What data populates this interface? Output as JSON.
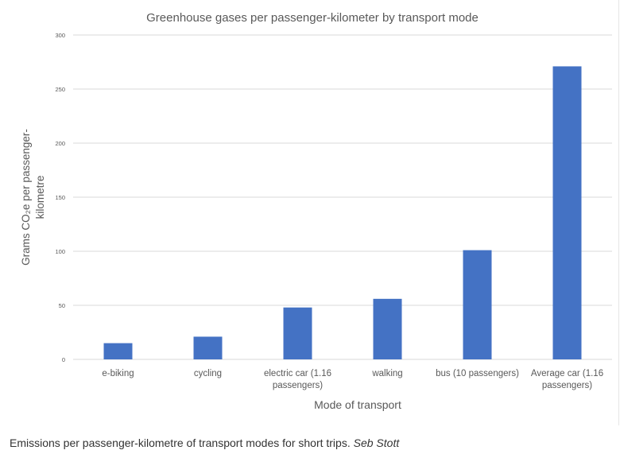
{
  "chart_data": {
    "type": "bar",
    "title": "Greenhouse gases per passenger-kilometer by transport mode",
    "xlabel": "Mode of transport",
    "ylabel": "Grams CO₂e per passenger-kilometre",
    "categories": [
      "e-biking",
      "cycling",
      "electric car (1.16 passengers)",
      "walking",
      "bus (10 passengers)",
      "Average car (1.16 passengers)"
    ],
    "values": [
      15,
      21,
      48,
      56,
      101,
      271
    ],
    "ylim": [
      0,
      300
    ],
    "yticks": [
      "0",
      "50",
      "100",
      "150",
      "200",
      "250",
      "300"
    ],
    "grid": true,
    "legend": "none",
    "colors": {
      "bar": "#4472c4",
      "grid": "#d9d9d9",
      "text": "#595959"
    }
  },
  "caption": {
    "text": "Emissions per passenger-kilometre of transport modes for short trips.",
    "credit": "Seb Stott"
  }
}
